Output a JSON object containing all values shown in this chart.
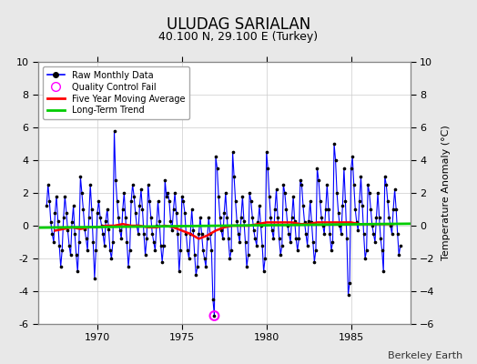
{
  "title": "ULUDAG SARIALAN",
  "subtitle": "40.100 N, 29.100 E (Turkey)",
  "ylabel_right": "Temperature Anomaly (°C)",
  "watermark": "Berkeley Earth",
  "ylim": [
    -6,
    10
  ],
  "yticks": [
    -6,
    -4,
    -2,
    0,
    2,
    4,
    6,
    8,
    10
  ],
  "xlim": [
    1966.5,
    1988.5
  ],
  "xticks": [
    1970,
    1975,
    1980,
    1985
  ],
  "bg_color": "#e8e8e8",
  "plot_bg_color": "#ffffff",
  "raw_color": "#0000ff",
  "dot_color": "#000000",
  "qc_color": "#ff00ff",
  "moving_avg_color": "#ff0000",
  "trend_color": "#00cc00",
  "raw_data": [
    1967.0,
    1.2,
    1967.083,
    2.5,
    1967.167,
    1.5,
    1967.25,
    0.2,
    1967.333,
    -0.5,
    1967.417,
    -1.0,
    1967.5,
    0.8,
    1967.583,
    1.8,
    1967.667,
    0.3,
    1967.75,
    -1.2,
    1967.833,
    -2.5,
    1967.917,
    -1.5,
    1968.0,
    0.5,
    1968.083,
    1.8,
    1968.167,
    0.8,
    1968.25,
    -0.3,
    1968.333,
    -1.2,
    1968.417,
    -1.8,
    1968.5,
    0.2,
    1968.583,
    1.2,
    1968.667,
    -0.5,
    1968.75,
    -1.8,
    1968.833,
    -2.8,
    1968.917,
    -1.0,
    1969.0,
    3.0,
    1969.083,
    2.0,
    1969.167,
    1.0,
    1969.25,
    -0.2,
    1969.333,
    -0.8,
    1969.417,
    -1.5,
    1969.5,
    0.5,
    1969.583,
    2.5,
    1969.667,
    1.0,
    1969.75,
    -1.0,
    1969.833,
    -3.2,
    1969.917,
    -1.5,
    1970.0,
    0.8,
    1970.083,
    1.5,
    1970.167,
    0.5,
    1970.25,
    0.0,
    1970.333,
    -0.5,
    1970.417,
    -1.2,
    1970.5,
    0.3,
    1970.583,
    1.0,
    1970.667,
    -0.2,
    1970.75,
    -1.5,
    1970.833,
    -2.0,
    1970.917,
    -1.0,
    1971.0,
    5.8,
    1971.083,
    2.8,
    1971.167,
    1.5,
    1971.25,
    0.5,
    1971.333,
    -0.3,
    1971.417,
    -0.8,
    1971.5,
    1.0,
    1971.583,
    2.0,
    1971.667,
    0.5,
    1971.75,
    -1.0,
    1971.833,
    -2.5,
    1971.917,
    -1.5,
    1972.0,
    1.5,
    1972.083,
    2.5,
    1972.167,
    1.8,
    1972.25,
    0.8,
    1972.333,
    0.0,
    1972.417,
    -0.5,
    1972.5,
    1.2,
    1972.583,
    2.2,
    1972.667,
    1.0,
    1972.75,
    -0.5,
    1972.833,
    -1.8,
    1972.917,
    -0.8,
    1973.0,
    2.5,
    1973.083,
    1.5,
    1973.167,
    0.5,
    1973.25,
    -0.5,
    1973.333,
    -1.0,
    1973.417,
    -1.5,
    1973.5,
    0.0,
    1973.583,
    1.5,
    1973.667,
    0.3,
    1973.75,
    -1.2,
    1973.833,
    -2.2,
    1973.917,
    -1.2,
    1974.0,
    2.8,
    1974.083,
    1.8,
    1974.167,
    2.0,
    1974.25,
    1.5,
    1974.333,
    0.3,
    1974.417,
    -0.3,
    1974.5,
    1.0,
    1974.583,
    2.0,
    1974.667,
    0.8,
    1974.75,
    -0.5,
    1974.833,
    -2.8,
    1974.917,
    -1.5,
    1975.0,
    1.8,
    1975.083,
    1.5,
    1975.167,
    0.8,
    1975.25,
    -0.5,
    1975.333,
    -1.5,
    1975.417,
    -2.0,
    1975.5,
    -0.5,
    1975.583,
    1.0,
    1975.667,
    -0.3,
    1975.75,
    -1.8,
    1975.833,
    -3.0,
    1975.917,
    -2.5,
    1976.0,
    -0.5,
    1976.083,
    0.5,
    1976.167,
    -0.5,
    1976.25,
    -1.5,
    1976.333,
    -2.0,
    1976.417,
    -2.5,
    1976.5,
    -0.8,
    1976.583,
    0.5,
    1976.667,
    -0.5,
    1976.75,
    -1.5,
    1976.833,
    -4.5,
    1976.917,
    -5.5,
    1977.0,
    4.2,
    1977.083,
    3.5,
    1977.167,
    1.8,
    1977.25,
    0.5,
    1977.333,
    -0.3,
    1977.417,
    -0.8,
    1977.5,
    0.8,
    1977.583,
    2.0,
    1977.667,
    0.5,
    1977.75,
    -0.8,
    1977.833,
    -2.0,
    1977.917,
    -1.5,
    1978.0,
    4.5,
    1978.083,
    3.0,
    1978.167,
    1.5,
    1978.25,
    0.3,
    1978.333,
    -0.5,
    1978.417,
    -1.0,
    1978.5,
    0.5,
    1978.583,
    1.8,
    1978.667,
    0.3,
    1978.75,
    -1.0,
    1978.833,
    -2.5,
    1978.917,
    -1.8,
    1979.0,
    2.0,
    1979.083,
    1.5,
    1979.167,
    0.5,
    1979.25,
    -0.3,
    1979.333,
    -0.8,
    1979.417,
    -1.2,
    1979.5,
    0.2,
    1979.583,
    1.2,
    1979.667,
    0.0,
    1979.75,
    -1.2,
    1979.833,
    -2.8,
    1979.917,
    -2.0,
    1980.0,
    4.5,
    1980.083,
    3.5,
    1980.167,
    1.8,
    1980.25,
    0.5,
    1980.333,
    -0.3,
    1980.417,
    -0.8,
    1980.5,
    1.0,
    1980.583,
    2.2,
    1980.667,
    0.5,
    1980.75,
    -0.8,
    1980.833,
    -1.8,
    1980.917,
    -1.2,
    1981.0,
    2.5,
    1981.083,
    2.0,
    1981.167,
    1.0,
    1981.25,
    0.0,
    1981.333,
    -0.5,
    1981.417,
    -1.0,
    1981.5,
    0.5,
    1981.583,
    1.8,
    1981.667,
    0.3,
    1981.75,
    -0.8,
    1981.833,
    -1.5,
    1981.917,
    -0.8,
    1982.0,
    2.8,
    1982.083,
    2.5,
    1982.167,
    1.2,
    1982.25,
    0.2,
    1982.333,
    -0.5,
    1982.417,
    -1.2,
    1982.5,
    0.3,
    1982.583,
    1.5,
    1982.667,
    0.2,
    1982.75,
    -1.0,
    1982.833,
    -2.2,
    1982.917,
    -1.5,
    1983.0,
    3.5,
    1983.083,
    2.8,
    1983.167,
    1.5,
    1983.25,
    0.5,
    1983.333,
    0.0,
    1983.417,
    -0.5,
    1983.5,
    1.0,
    1983.583,
    2.5,
    1983.667,
    1.0,
    1983.75,
    -0.5,
    1983.833,
    -1.5,
    1983.917,
    -1.0,
    1984.0,
    5.0,
    1984.083,
    4.0,
    1984.167,
    2.0,
    1984.25,
    0.8,
    1984.333,
    0.0,
    1984.417,
    -0.5,
    1984.5,
    1.2,
    1984.583,
    3.5,
    1984.667,
    1.5,
    1984.75,
    -0.8,
    1984.833,
    -4.2,
    1984.917,
    -3.5,
    1985.0,
    3.5,
    1985.083,
    4.2,
    1985.167,
    2.5,
    1985.25,
    1.0,
    1985.333,
    0.2,
    1985.417,
    -0.3,
    1985.5,
    1.5,
    1985.583,
    3.0,
    1985.667,
    1.2,
    1985.75,
    -0.5,
    1985.833,
    -2.0,
    1985.917,
    -1.5,
    1986.0,
    2.5,
    1986.083,
    2.0,
    1986.167,
    1.0,
    1986.25,
    0.0,
    1986.333,
    -0.5,
    1986.417,
    -1.0,
    1986.5,
    0.5,
    1986.583,
    2.0,
    1986.667,
    0.5,
    1986.75,
    -0.8,
    1986.833,
    -1.5,
    1986.917,
    -2.8,
    1987.0,
    3.0,
    1987.083,
    2.5,
    1987.167,
    1.5,
    1987.25,
    0.5,
    1987.333,
    0.0,
    1987.417,
    -0.5,
    1987.5,
    1.0,
    1987.583,
    2.2,
    1987.667,
    1.0,
    1987.75,
    -0.5,
    1987.833,
    -1.8,
    1987.917,
    -1.2
  ],
  "qc_fail_points": [
    [
      1976.917,
      -5.5
    ]
  ],
  "moving_avg_x": [
    1967.5,
    1968.0,
    1968.5,
    1969.0,
    1969.5,
    1970.0,
    1970.5,
    1971.0,
    1971.5,
    1972.0,
    1972.5,
    1973.0,
    1973.5,
    1974.0,
    1974.5,
    1975.0,
    1975.5,
    1976.0,
    1976.5,
    1977.0,
    1977.5,
    1978.0,
    1978.5,
    1979.0,
    1979.5,
    1980.0,
    1980.5,
    1981.0,
    1981.5,
    1982.0,
    1982.5,
    1983.0,
    1983.5,
    1984.0,
    1984.5,
    1985.0,
    1985.5,
    1986.0,
    1986.5,
    1987.0,
    1987.5
  ],
  "moving_avg_y": [
    -0.3,
    -0.2,
    -0.1,
    -0.2,
    -0.1,
    -0.1,
    0.0,
    0.0,
    0.1,
    0.0,
    0.0,
    -0.1,
    -0.1,
    0.0,
    -0.1,
    -0.3,
    -0.5,
    -0.8,
    -0.6,
    -0.3,
    -0.1,
    0.0,
    0.0,
    0.0,
    0.1,
    0.2,
    0.2,
    0.2,
    0.2,
    0.1,
    0.1,
    0.2,
    0.2,
    0.2,
    0.2,
    0.2,
    0.1,
    0.1,
    0.1,
    0.1,
    0.1
  ],
  "trend_x": [
    1966.5,
    1988.5
  ],
  "trend_y": [
    -0.12,
    0.12
  ]
}
